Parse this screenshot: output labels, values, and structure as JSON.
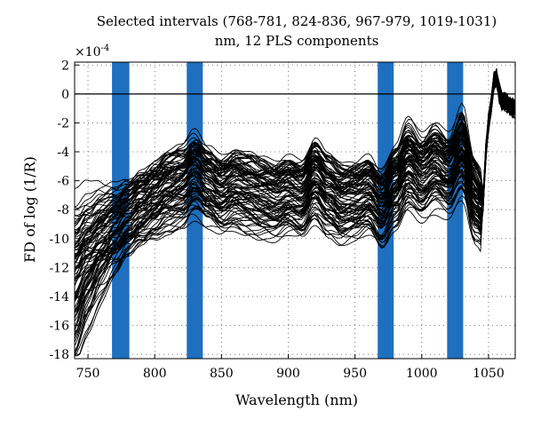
{
  "chart_data": {
    "type": "line",
    "title_line1": "Selected intervals (768-781, 824-836, 967-979, 1019-1031)",
    "title_line2": "nm, 12 PLS components",
    "xlabel": "Wavelength (nm)",
    "ylabel": "FD of log (1/R)",
    "exponent_label": "×10",
    "exponent_power": "-4",
    "xlim": [
      740,
      1070
    ],
    "ylim": [
      -18.3,
      2.2
    ],
    "x_ticks": [
      750,
      800,
      850,
      900,
      950,
      1000,
      1050
    ],
    "x_tick_labels": [
      "750",
      "800",
      "850",
      "900",
      "950",
      "1000",
      "1050"
    ],
    "y_ticks": [
      2,
      0,
      -2,
      -4,
      -6,
      -8,
      -10,
      -12,
      -14,
      -16,
      -18
    ],
    "y_tick_labels": [
      "2",
      "0",
      "-2",
      "-4",
      "-6",
      "-8",
      "-10",
      "-12",
      "-14",
      "-16",
      "-18"
    ],
    "grid": "dotted",
    "zero_line": 0,
    "intervals": [
      {
        "label": "768-781",
        "start": 768,
        "end": 781
      },
      {
        "label": "824-836",
        "start": 824,
        "end": 836
      },
      {
        "label": "967-979",
        "start": 967,
        "end": 979
      },
      {
        "label": "1019-1031",
        "start": 1019,
        "end": 1031
      }
    ],
    "interval_color": "#1f6fbf",
    "line_color": "#000000",
    "representative_spectrum": {
      "x": [
        740,
        750,
        760,
        770,
        780,
        790,
        800,
        810,
        820,
        830,
        840,
        850,
        860,
        870,
        880,
        890,
        900,
        910,
        920,
        930,
        940,
        950,
        960,
        970,
        980,
        990,
        1000,
        1010,
        1020,
        1030,
        1040,
        1045,
        1050,
        1055,
        1060,
        1070
      ],
      "y": [
        -11.5,
        -10.5,
        -9.8,
        -9.3,
        -8.6,
        -8.0,
        -7.4,
        -6.8,
        -6.5,
        -5.6,
        -6.4,
        -7.0,
        -6.6,
        -6.9,
        -7.2,
        -7.4,
        -7.0,
        -7.3,
        -6.0,
        -7.0,
        -7.6,
        -7.4,
        -7.0,
        -8.0,
        -6.5,
        -5.0,
        -5.8,
        -5.0,
        -5.6,
        -4.0,
        -7.4,
        -8.0,
        -2.0,
        1.2,
        -0.5,
        -1.0
      ]
    },
    "series_count": 100
  }
}
